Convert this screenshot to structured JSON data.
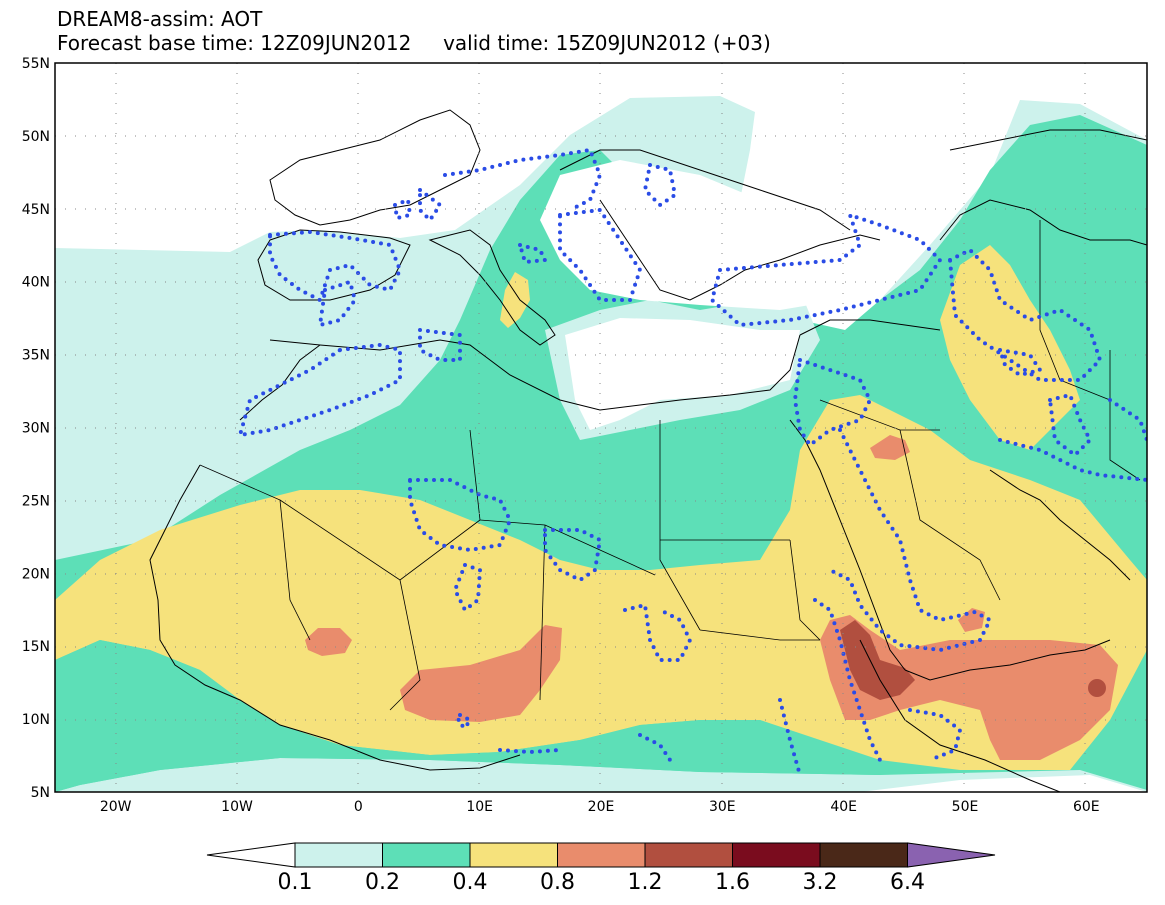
{
  "header": {
    "title": "DREAM8-assim: AOT",
    "subtitle": "Forecast base time: 12Z09JUN2012     valid time: 15Z09JUN2012 (+03)"
  },
  "map": {
    "lat_labels": [
      "55N",
      "50N",
      "45N",
      "40N",
      "35N",
      "30N",
      "25N",
      "20N",
      "15N",
      "10N",
      "5N"
    ],
    "lon_labels": [
      "20W",
      "10W",
      "0",
      "10E",
      "20E",
      "30E",
      "40E",
      "50E",
      "60E"
    ],
    "lon_range": [
      -25,
      65
    ],
    "lat_range": [
      5,
      55
    ],
    "colors": {
      "white": "#ffffff",
      "lightcyan": "#cdf2ec",
      "green": "#5ddfb7",
      "yellow": "#f6e27c",
      "orange": "#e98c6c",
      "brown": "#b14f3f",
      "coast": "#000000",
      "dots": "#2a4ce6"
    }
  },
  "colorbar": {
    "labels": [
      "0.1",
      "0.2",
      "0.4",
      "0.8",
      "1.2",
      "1.6",
      "3.2",
      "6.4"
    ],
    "colors": [
      "#ffffff",
      "#cdf2ec",
      "#5ddfb7",
      "#f6e27c",
      "#e98c6c",
      "#b14f3f",
      "#7a0c1e",
      "#4a2818",
      "#8a62b0"
    ]
  }
}
